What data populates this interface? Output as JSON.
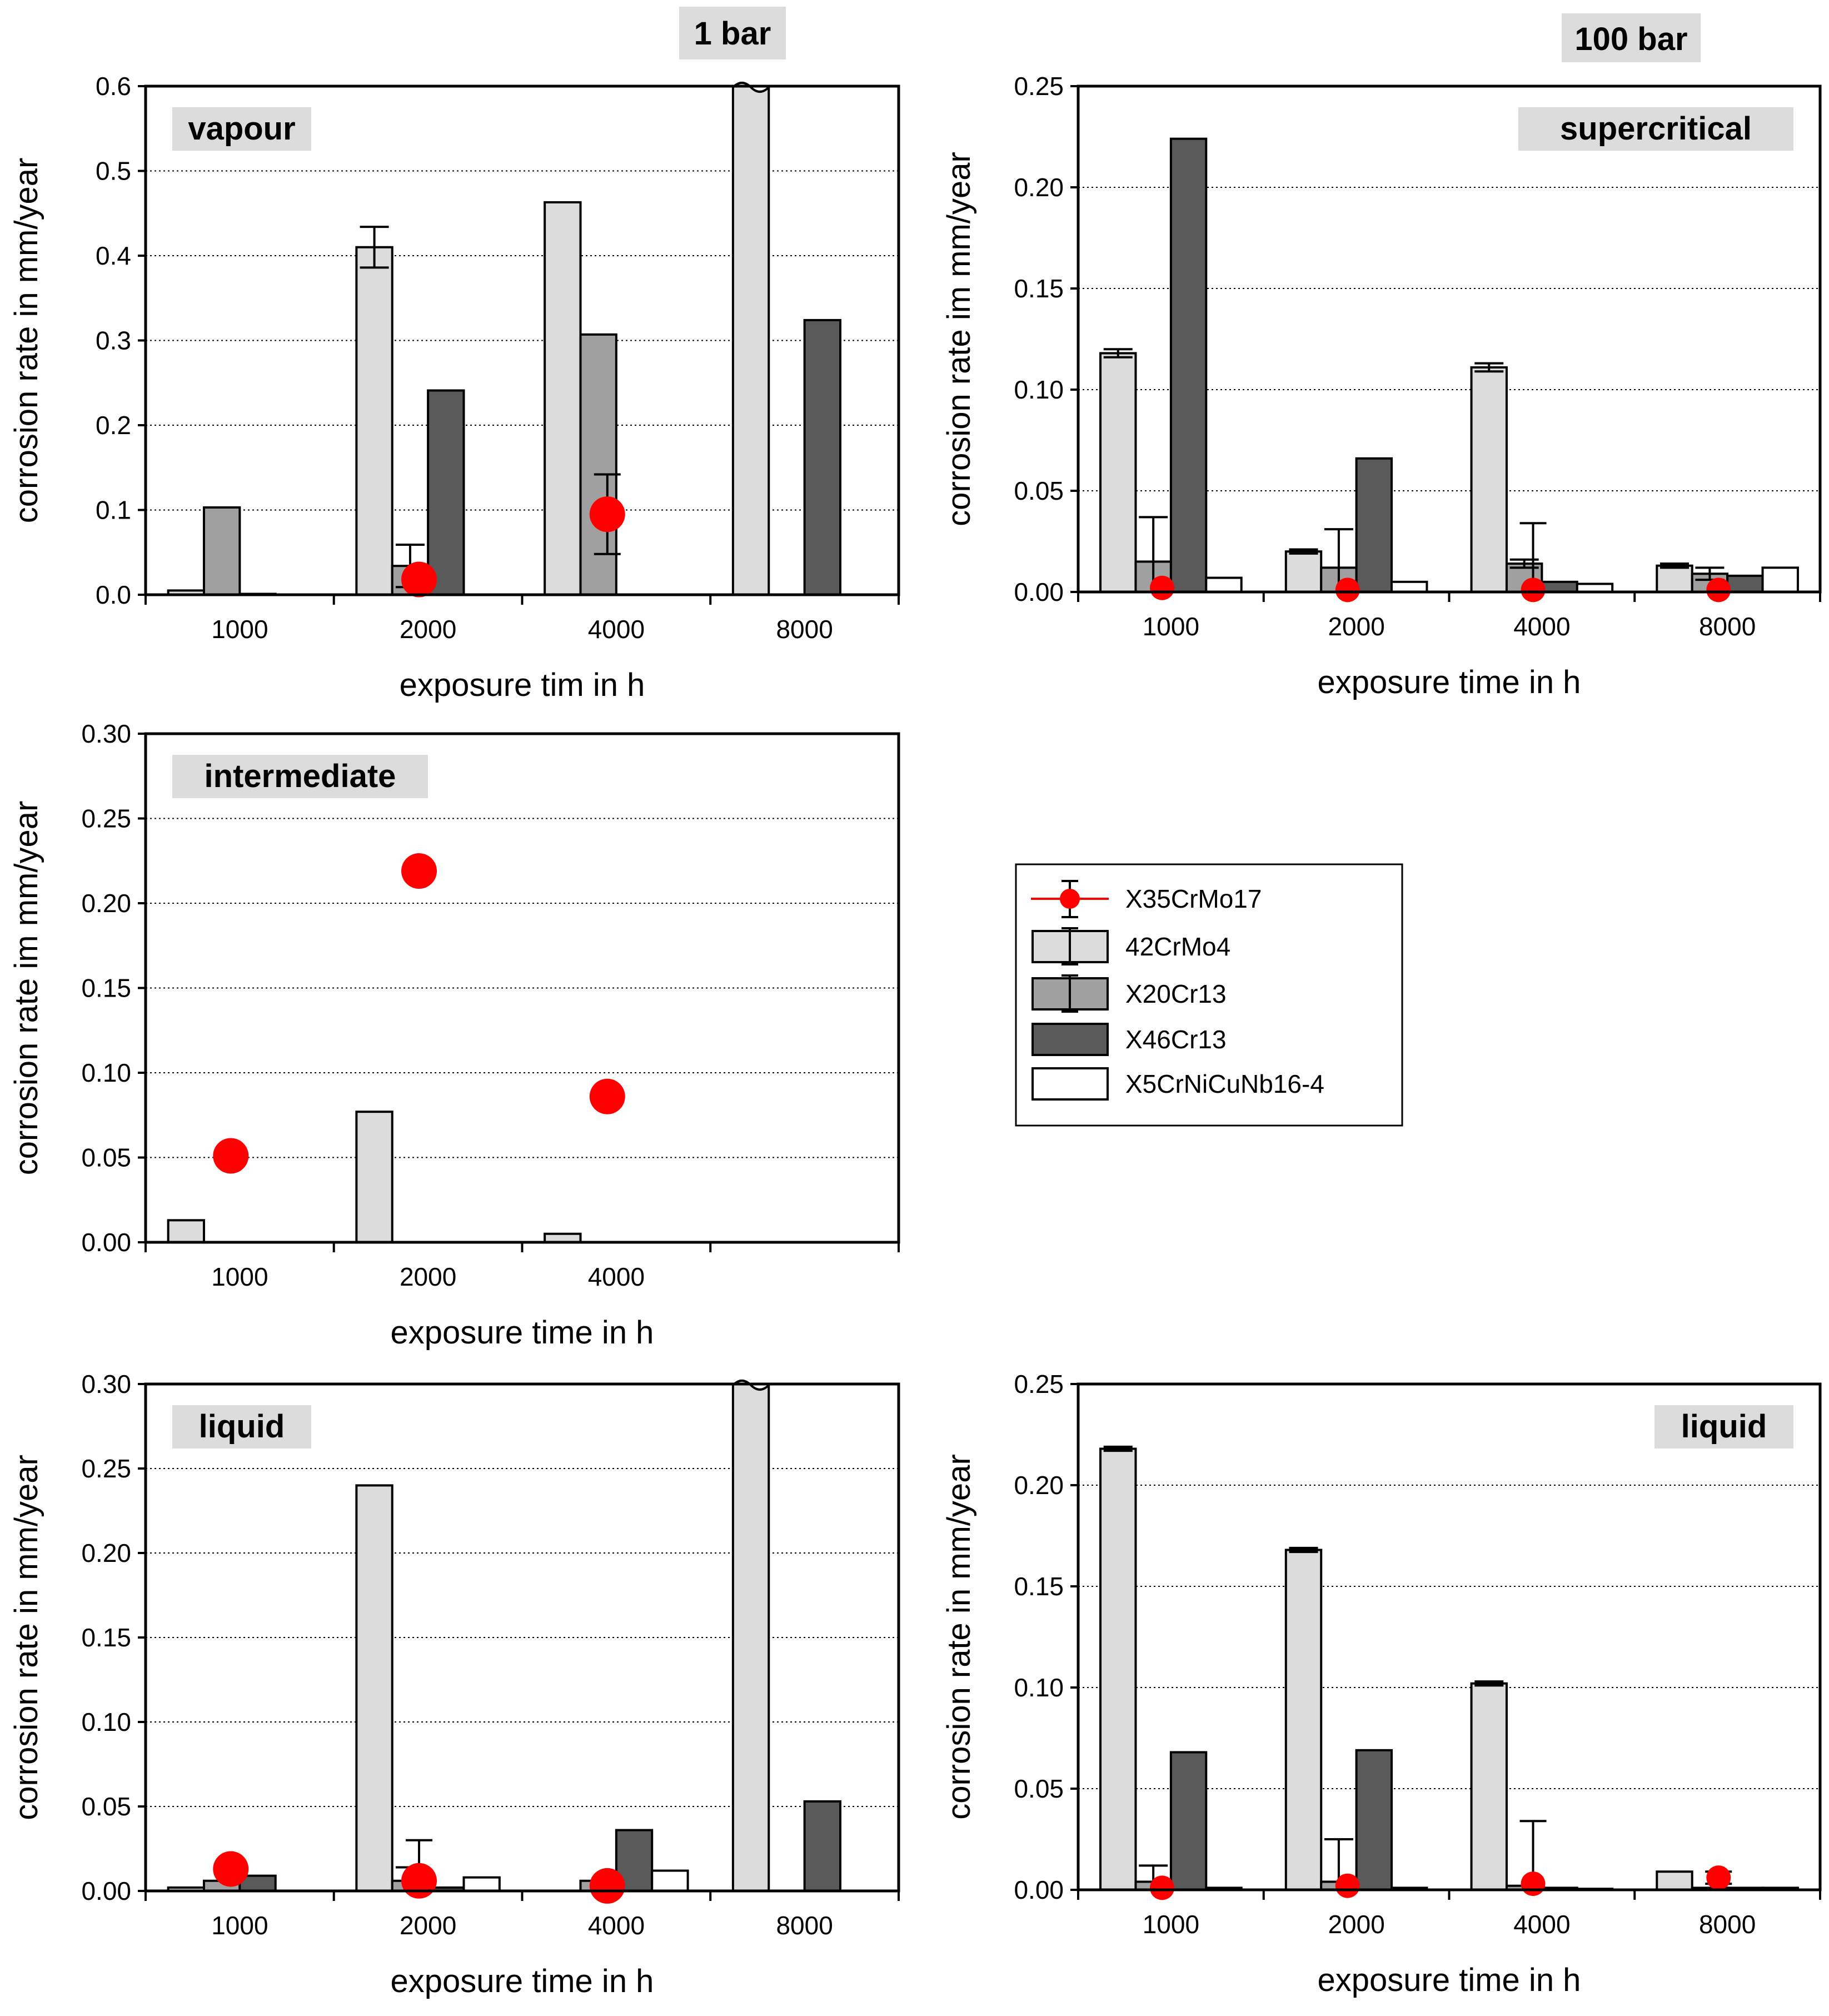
{
  "figure": {
    "headers": [
      "1 bar",
      "100 bar"
    ]
  },
  "legend": [
    {
      "name": "X35CrMo17",
      "kind": "marker",
      "color": "#ff0000"
    },
    {
      "name": "42CrMo4",
      "kind": "bar",
      "color": "#dcdcdc"
    },
    {
      "name": "X20Cr13",
      "kind": "bar",
      "color": "#a0a0a0"
    },
    {
      "name": "X46Cr13",
      "kind": "bar",
      "color": "#5a5a5a"
    },
    {
      "name": "X5CrNiCuNb16-4",
      "kind": "bar",
      "color": "#ffffff"
    }
  ],
  "chart_data": [
    {
      "type": "bar",
      "panel": "1 bar",
      "condition": "vapour",
      "condition_position": "top-left",
      "ylabel": "corrosion rate in mm/year",
      "xlabel": "exposure tim in h",
      "categories": [
        "1000",
        "2000",
        "4000",
        "8000"
      ],
      "ylim": [
        0,
        0.6
      ],
      "yticks": [
        "0.0",
        "0.1",
        "0.2",
        "0.3",
        "0.4",
        "0.5",
        "0.6"
      ],
      "series": [
        {
          "name": "42CrMo4",
          "values": [
            0.005,
            0.41,
            0.463,
            0.6
          ],
          "errors": [
            null,
            0.024,
            null,
            null
          ],
          "broken": [
            false,
            false,
            false,
            true
          ]
        },
        {
          "name": "X20Cr13",
          "values": [
            0.103,
            0.034,
            0.307,
            null
          ],
          "errors": [
            null,
            0.025,
            null,
            null
          ]
        },
        {
          "name": "X46Cr13",
          "values": [
            0.001,
            0.241,
            null,
            0.324
          ],
          "errors": [
            null,
            null,
            null,
            null
          ]
        }
      ],
      "markers": {
        "name": "X35CrMo17",
        "values": [
          null,
          0.018,
          0.095,
          null
        ],
        "errors": [
          null,
          null,
          0.047,
          null
        ]
      }
    },
    {
      "type": "bar",
      "panel": "100 bar",
      "condition": "supercritical",
      "condition_position": "top-right",
      "ylabel": "corrosion rate im mm/year",
      "xlabel": "exposure time in h",
      "categories": [
        "1000",
        "2000",
        "4000",
        "8000"
      ],
      "ylim": [
        0,
        0.25
      ],
      "yticks": [
        "0.00",
        "0.05",
        "0.10",
        "0.15",
        "0.20",
        "0.25"
      ],
      "series": [
        {
          "name": "42CrMo4",
          "values": [
            0.118,
            0.02,
            0.111,
            0.013
          ],
          "errors": [
            0.002,
            0.001,
            0.002,
            0.001
          ]
        },
        {
          "name": "X20Cr13",
          "values": [
            0.015,
            0.012,
            0.014,
            0.009
          ],
          "errors": [
            0.022,
            0.019,
            0.002,
            0.003
          ]
        },
        {
          "name": "X46Cr13",
          "values": [
            0.224,
            0.066,
            0.005,
            0.008
          ],
          "errors": [
            null,
            null,
            null,
            null
          ]
        },
        {
          "name": "X5CrNiCuNb16-4",
          "values": [
            0.007,
            0.005,
            0.004,
            0.012
          ],
          "errors": [
            null,
            null,
            null,
            null
          ]
        }
      ],
      "markers": {
        "name": "X35CrMo17",
        "values": [
          0.002,
          0.001,
          0.001,
          0.001
        ],
        "errors": [
          null,
          null,
          0.033,
          null
        ]
      }
    },
    {
      "type": "bar",
      "panel": "1 bar",
      "condition": "intermediate",
      "condition_position": "top-left",
      "ylabel": "corrosion rate im mm/year",
      "xlabel": "exposure time in h",
      "categories": [
        "1000",
        "2000",
        "4000",
        ""
      ],
      "ylim": [
        0,
        0.3
      ],
      "yticks": [
        "0.00",
        "0.05",
        "0.10",
        "0.15",
        "0.20",
        "0.25",
        "0.30"
      ],
      "series": [
        {
          "name": "42CrMo4",
          "values": [
            0.013,
            0.077,
            0.005,
            null
          ],
          "errors": [
            null,
            null,
            null,
            null
          ]
        }
      ],
      "markers": {
        "name": "X35CrMo17",
        "values": [
          0.051,
          0.219,
          0.086,
          null
        ],
        "errors": [
          null,
          null,
          null,
          null
        ]
      }
    },
    {
      "type": "bar",
      "panel": "1 bar",
      "condition": "liquid",
      "condition_position": "top-left",
      "ylabel": "corrosion rate in mm/year",
      "xlabel": "exposure time in h",
      "categories": [
        "1000",
        "2000",
        "4000",
        "8000"
      ],
      "ylim": [
        0,
        0.3
      ],
      "yticks": [
        "0.00",
        "0.05",
        "0.10",
        "0.15",
        "0.20",
        "0.25",
        "0.30"
      ],
      "series": [
        {
          "name": "42CrMo4",
          "values": [
            0.002,
            0.24,
            null,
            0.3
          ],
          "errors": [
            null,
            null,
            null,
            null
          ],
          "broken": [
            false,
            false,
            false,
            true
          ]
        },
        {
          "name": "X20Cr13",
          "values": [
            0.006,
            0.006,
            0.006,
            null
          ],
          "errors": [
            null,
            0.008,
            null,
            null
          ]
        },
        {
          "name": "X46Cr13",
          "values": [
            0.009,
            0.002,
            0.036,
            0.053
          ],
          "errors": [
            null,
            null,
            null,
            null
          ]
        },
        {
          "name": "X5CrNiCuNb16-4",
          "values": [
            null,
            0.008,
            0.012,
            null
          ],
          "errors": [
            null,
            null,
            null,
            null
          ]
        }
      ],
      "markers": {
        "name": "X35CrMo17",
        "values": [
          0.013,
          0.006,
          0.003,
          null
        ],
        "errors": [
          null,
          0.024,
          null,
          null
        ]
      }
    },
    {
      "type": "bar",
      "panel": "100 bar",
      "condition": "liquid",
      "condition_position": "top-right",
      "ylabel": "corrosion rate in mm/year",
      "xlabel": "exposure time in h",
      "categories": [
        "1000",
        "2000",
        "4000",
        "8000"
      ],
      "ylim": [
        0,
        0.25
      ],
      "yticks": [
        "0.00",
        "0.05",
        "0.10",
        "0.15",
        "0.20",
        "0.25"
      ],
      "series": [
        {
          "name": "42CrMo4",
          "values": [
            0.218,
            0.168,
            0.102,
            0.009
          ],
          "errors": [
            0.001,
            0.001,
            0.001,
            null
          ]
        },
        {
          "name": "X20Cr13",
          "values": [
            0.004,
            0.004,
            0.002,
            0.001
          ],
          "errors": [
            0.008,
            0.021,
            null,
            null
          ]
        },
        {
          "name": "X46Cr13",
          "values": [
            0.068,
            0.069,
            0.001,
            0.001
          ],
          "errors": [
            null,
            null,
            null,
            null
          ]
        },
        {
          "name": "X5CrNiCuNb16-4",
          "values": [
            0.001,
            0.001,
            0.0005,
            0.001
          ],
          "errors": [
            null,
            null,
            null,
            null
          ]
        }
      ],
      "markers": {
        "name": "X35CrMo17",
        "values": [
          0.001,
          0.002,
          0.003,
          0.006
        ],
        "errors": [
          null,
          null,
          0.031,
          0.003
        ]
      }
    }
  ]
}
